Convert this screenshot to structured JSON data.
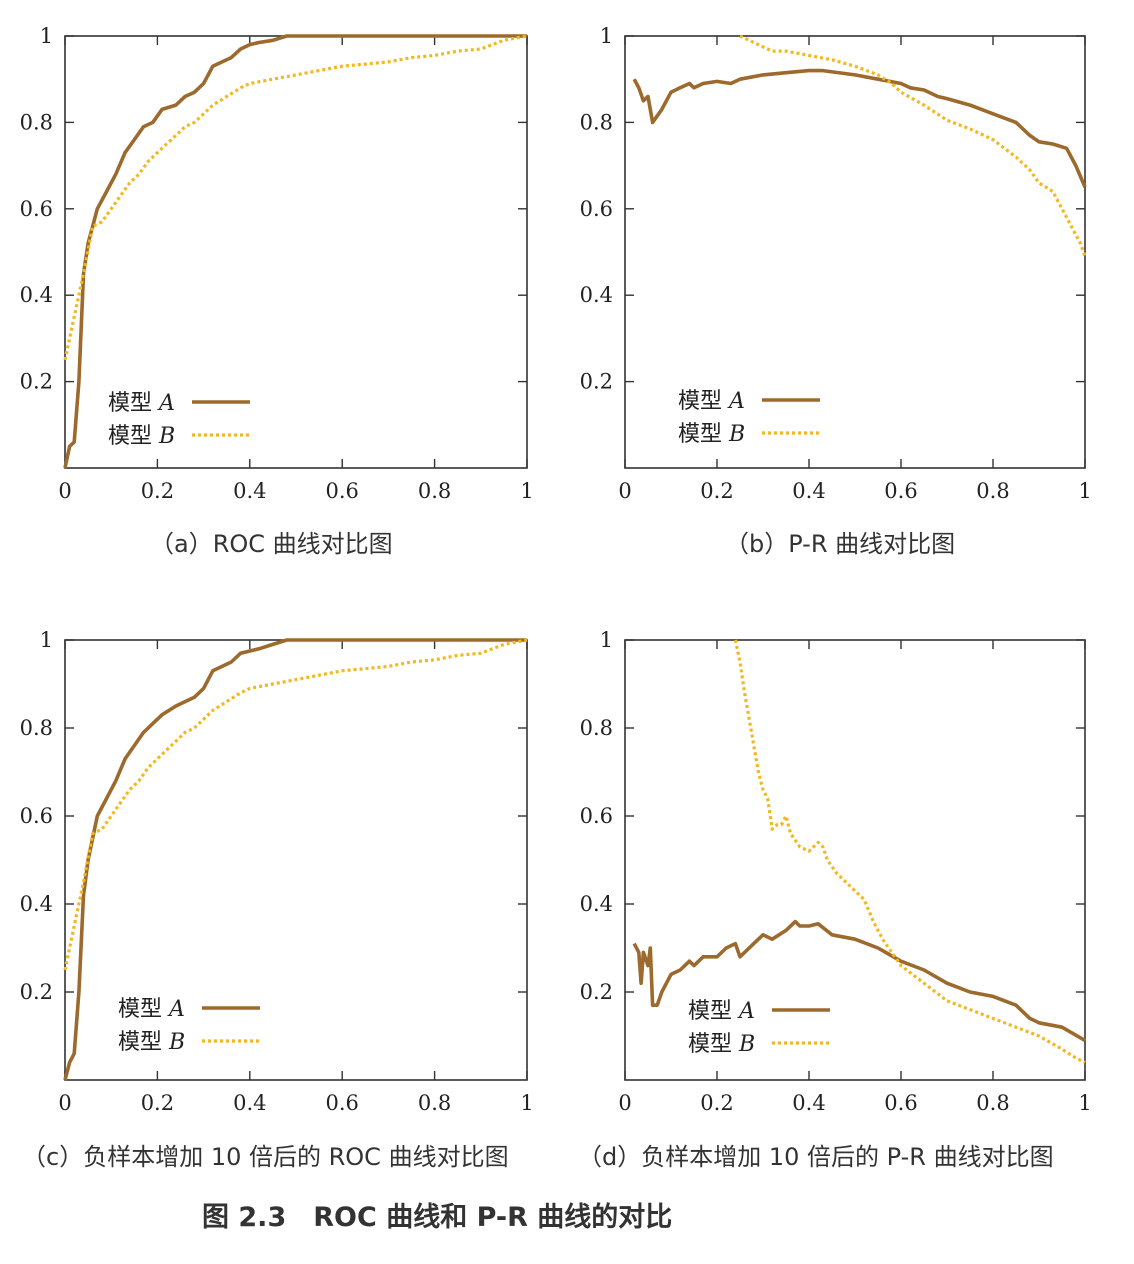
{
  "colors": {
    "model_a": "#9c6a2c",
    "model_b": "#f2b81e",
    "axis": "#333333"
  },
  "figure_title": "图 2.3　ROC 曲线和 P-R 曲线的对比",
  "chart_data": [
    {
      "id": "a",
      "type": "line",
      "caption": "（a）ROC 曲线对比图",
      "xlim": [
        0,
        1
      ],
      "ylim": [
        0,
        1
      ],
      "xticks": [
        "0",
        "0.2",
        "0.4",
        "0.6",
        "0.8",
        "1"
      ],
      "yticks": [
        "0.2",
        "0.4",
        "0.6",
        "0.8",
        "1"
      ],
      "grid": false,
      "legend": "bottom-left",
      "series": [
        {
          "name": "模型 A",
          "style": "solid",
          "x": [
            0,
            0.01,
            0.02,
            0.03,
            0.04,
            0.05,
            0.07,
            0.09,
            0.11,
            0.13,
            0.15,
            0.17,
            0.19,
            0.21,
            0.24,
            0.26,
            0.28,
            0.3,
            0.32,
            0.34,
            0.36,
            0.38,
            0.4,
            0.42,
            0.45,
            0.48,
            0.5,
            0.6,
            0.8,
            1.0
          ],
          "y": [
            0,
            0.05,
            0.06,
            0.2,
            0.45,
            0.52,
            0.6,
            0.64,
            0.68,
            0.73,
            0.76,
            0.79,
            0.8,
            0.83,
            0.84,
            0.86,
            0.87,
            0.89,
            0.93,
            0.94,
            0.95,
            0.97,
            0.98,
            0.985,
            0.99,
            1.0,
            1.0,
            1.0,
            1.0,
            1.0
          ]
        },
        {
          "name": "模型 B",
          "style": "dotted",
          "x": [
            0,
            0.01,
            0.02,
            0.04,
            0.06,
            0.08,
            0.1,
            0.12,
            0.14,
            0.16,
            0.18,
            0.2,
            0.22,
            0.24,
            0.26,
            0.28,
            0.3,
            0.32,
            0.35,
            0.38,
            0.4,
            0.45,
            0.5,
            0.55,
            0.6,
            0.65,
            0.7,
            0.75,
            0.8,
            0.85,
            0.9,
            0.95,
            1.0
          ],
          "y": [
            0.25,
            0.3,
            0.35,
            0.45,
            0.56,
            0.57,
            0.6,
            0.63,
            0.66,
            0.68,
            0.71,
            0.73,
            0.75,
            0.77,
            0.79,
            0.8,
            0.82,
            0.84,
            0.86,
            0.88,
            0.89,
            0.9,
            0.91,
            0.92,
            0.93,
            0.935,
            0.94,
            0.95,
            0.955,
            0.965,
            0.97,
            0.99,
            1.0
          ]
        }
      ]
    },
    {
      "id": "b",
      "type": "line",
      "caption": "（b）P-R 曲线对比图",
      "xlim": [
        0,
        1
      ],
      "ylim": [
        0,
        1
      ],
      "xticks": [
        "0",
        "0.2",
        "0.4",
        "0.6",
        "0.8",
        "1"
      ],
      "yticks": [
        "0.2",
        "0.4",
        "0.6",
        "0.8",
        "1"
      ],
      "grid": false,
      "legend": "bottom-left",
      "series": [
        {
          "name": "模型 A",
          "style": "solid",
          "x": [
            0.02,
            0.03,
            0.04,
            0.05,
            0.06,
            0.08,
            0.1,
            0.12,
            0.14,
            0.15,
            0.17,
            0.2,
            0.23,
            0.25,
            0.3,
            0.35,
            0.4,
            0.43,
            0.5,
            0.55,
            0.6,
            0.62,
            0.65,
            0.68,
            0.7,
            0.75,
            0.8,
            0.85,
            0.88,
            0.9,
            0.93,
            0.96,
            0.98,
            1.0
          ],
          "y": [
            0.9,
            0.88,
            0.85,
            0.86,
            0.8,
            0.83,
            0.87,
            0.88,
            0.89,
            0.88,
            0.89,
            0.895,
            0.89,
            0.9,
            0.91,
            0.915,
            0.92,
            0.92,
            0.91,
            0.9,
            0.89,
            0.88,
            0.875,
            0.86,
            0.855,
            0.84,
            0.82,
            0.8,
            0.77,
            0.755,
            0.75,
            0.74,
            0.7,
            0.65
          ]
        },
        {
          "name": "模型 B",
          "style": "dotted",
          "x": [
            0.25,
            0.28,
            0.3,
            0.32,
            0.35,
            0.4,
            0.45,
            0.5,
            0.55,
            0.58,
            0.6,
            0.65,
            0.7,
            0.75,
            0.8,
            0.85,
            0.88,
            0.9,
            0.93,
            0.95,
            0.97,
            0.99,
            1.0
          ],
          "y": [
            1.0,
            0.985,
            0.975,
            0.965,
            0.965,
            0.955,
            0.945,
            0.93,
            0.91,
            0.89,
            0.87,
            0.84,
            0.805,
            0.785,
            0.76,
            0.72,
            0.69,
            0.66,
            0.64,
            0.6,
            0.56,
            0.52,
            0.49
          ]
        }
      ]
    },
    {
      "id": "c",
      "type": "line",
      "caption": "（c）负样本增加 10 倍后的 ROC 曲线对比图",
      "xlim": [
        0,
        1
      ],
      "ylim": [
        0,
        1
      ],
      "xticks": [
        "0",
        "0.2",
        "0.4",
        "0.6",
        "0.8",
        "1"
      ],
      "yticks": [
        "0.2",
        "0.4",
        "0.6",
        "0.8",
        "1"
      ],
      "grid": false,
      "legend": "bottom-left",
      "series": [
        {
          "name": "模型 A",
          "style": "solid",
          "x": [
            0,
            0.01,
            0.02,
            0.03,
            0.04,
            0.05,
            0.07,
            0.09,
            0.11,
            0.13,
            0.15,
            0.17,
            0.19,
            0.21,
            0.24,
            0.26,
            0.28,
            0.3,
            0.32,
            0.34,
            0.36,
            0.38,
            0.4,
            0.42,
            0.45,
            0.48,
            0.5,
            0.6,
            0.8,
            1.0
          ],
          "y": [
            0,
            0.04,
            0.06,
            0.2,
            0.42,
            0.5,
            0.6,
            0.64,
            0.68,
            0.73,
            0.76,
            0.79,
            0.81,
            0.83,
            0.85,
            0.86,
            0.87,
            0.89,
            0.93,
            0.94,
            0.95,
            0.97,
            0.975,
            0.98,
            0.99,
            1.0,
            1.0,
            1.0,
            1.0,
            1.0
          ]
        },
        {
          "name": "模型 B",
          "style": "dotted",
          "x": [
            0,
            0.01,
            0.02,
            0.04,
            0.06,
            0.08,
            0.1,
            0.12,
            0.14,
            0.16,
            0.18,
            0.2,
            0.22,
            0.24,
            0.26,
            0.28,
            0.3,
            0.32,
            0.35,
            0.38,
            0.4,
            0.45,
            0.5,
            0.55,
            0.6,
            0.65,
            0.7,
            0.75,
            0.8,
            0.85,
            0.9,
            0.95,
            1.0
          ],
          "y": [
            0.25,
            0.3,
            0.35,
            0.45,
            0.56,
            0.57,
            0.6,
            0.63,
            0.66,
            0.68,
            0.71,
            0.73,
            0.75,
            0.77,
            0.79,
            0.8,
            0.82,
            0.84,
            0.86,
            0.88,
            0.89,
            0.9,
            0.91,
            0.92,
            0.93,
            0.935,
            0.94,
            0.95,
            0.955,
            0.965,
            0.97,
            0.99,
            1.0
          ]
        }
      ]
    },
    {
      "id": "d",
      "type": "line",
      "caption": "（d）负样本增加 10 倍后的 P-R 曲线对比图",
      "xlim": [
        0,
        1
      ],
      "ylim": [
        0,
        1
      ],
      "xticks": [
        "0",
        "0.2",
        "0.4",
        "0.6",
        "0.8",
        "1"
      ],
      "yticks": [
        "0.2",
        "0.4",
        "0.6",
        "0.8",
        "1"
      ],
      "grid": false,
      "legend": "bottom-left",
      "series": [
        {
          "name": "模型 A",
          "style": "solid",
          "x": [
            0.02,
            0.03,
            0.035,
            0.04,
            0.05,
            0.055,
            0.06,
            0.07,
            0.08,
            0.1,
            0.12,
            0.14,
            0.15,
            0.17,
            0.2,
            0.22,
            0.24,
            0.25,
            0.28,
            0.3,
            0.32,
            0.35,
            0.37,
            0.38,
            0.4,
            0.42,
            0.45,
            0.5,
            0.55,
            0.6,
            0.65,
            0.7,
            0.75,
            0.8,
            0.85,
            0.88,
            0.9,
            0.95,
            1.0
          ],
          "y": [
            0.31,
            0.29,
            0.22,
            0.29,
            0.26,
            0.3,
            0.17,
            0.17,
            0.2,
            0.24,
            0.25,
            0.27,
            0.26,
            0.28,
            0.28,
            0.3,
            0.31,
            0.28,
            0.31,
            0.33,
            0.32,
            0.34,
            0.36,
            0.35,
            0.35,
            0.355,
            0.33,
            0.32,
            0.3,
            0.27,
            0.25,
            0.22,
            0.2,
            0.19,
            0.17,
            0.14,
            0.13,
            0.12,
            0.09
          ]
        },
        {
          "name": "模型 B",
          "style": "dotted",
          "x": [
            0.24,
            0.25,
            0.26,
            0.27,
            0.28,
            0.29,
            0.3,
            0.31,
            0.32,
            0.33,
            0.34,
            0.35,
            0.36,
            0.38,
            0.4,
            0.42,
            0.43,
            0.44,
            0.46,
            0.5,
            0.52,
            0.54,
            0.56,
            0.58,
            0.6,
            0.65,
            0.7,
            0.75,
            0.8,
            0.85,
            0.9,
            0.95,
            0.98,
            1.0
          ],
          "y": [
            1.0,
            0.95,
            0.88,
            0.82,
            0.76,
            0.7,
            0.66,
            0.64,
            0.57,
            0.58,
            0.58,
            0.6,
            0.56,
            0.53,
            0.52,
            0.54,
            0.53,
            0.5,
            0.47,
            0.43,
            0.41,
            0.36,
            0.32,
            0.29,
            0.26,
            0.22,
            0.18,
            0.16,
            0.14,
            0.12,
            0.1,
            0.07,
            0.05,
            0.04
          ]
        }
      ]
    }
  ]
}
